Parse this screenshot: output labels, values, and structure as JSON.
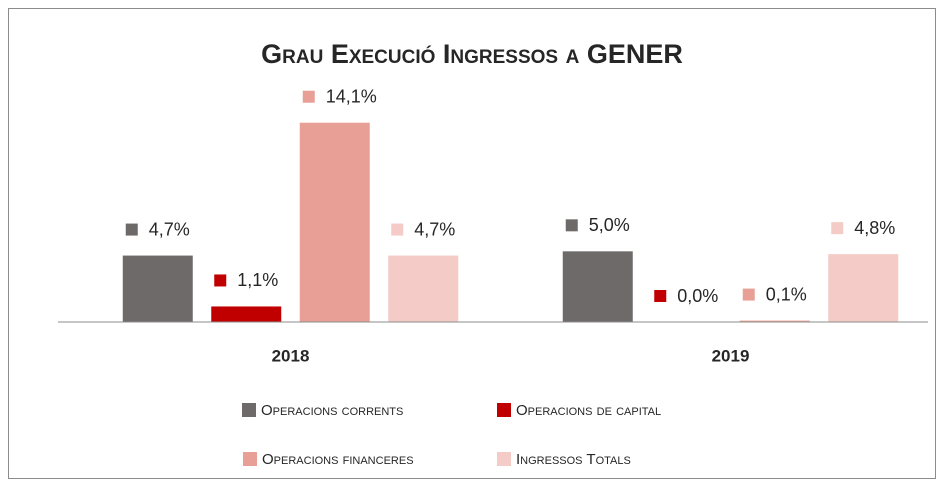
{
  "chart_data": {
    "type": "bar",
    "title": "Grau Execució Ingressos a GENER",
    "categories": [
      "2018",
      "2019"
    ],
    "series": [
      {
        "name": "Operacions corrents",
        "color": "#6d6a69",
        "values": [
          4.7,
          5.0
        ],
        "value_labels": [
          "4,7%",
          "5,0%"
        ]
      },
      {
        "name": "Operacions de capital",
        "color": "#c00000",
        "values": [
          1.1,
          0.0
        ],
        "value_labels": [
          "1,1%",
          "0,0%"
        ]
      },
      {
        "name": "Operacions financeres",
        "color": "#e8a096",
        "values": [
          14.1,
          0.1
        ],
        "value_labels": [
          "14,1%",
          "0,1%"
        ]
      },
      {
        "name": "Ingressos Totals",
        "color": "#f4cbc6",
        "values": [
          4.7,
          4.8
        ],
        "value_labels": [
          "4,7%",
          "4,8%"
        ]
      }
    ],
    "ylim": [
      0,
      15
    ]
  }
}
